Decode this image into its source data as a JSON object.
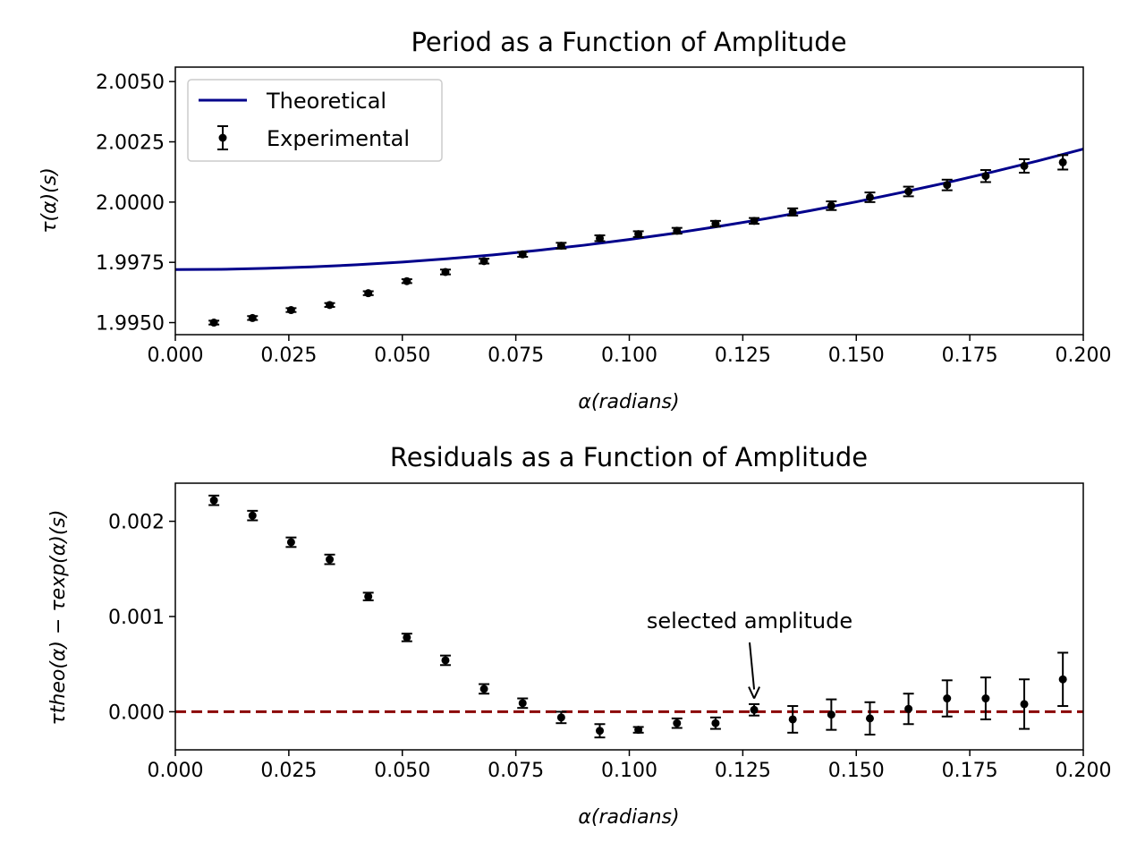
{
  "chart_data": [
    {
      "type": "line",
      "title": "Period as a Function of Amplitude",
      "xlabel": "α(radians)",
      "ylabel": "τ(α)(s)",
      "xlim": [
        0.0,
        0.2
      ],
      "ylim": [
        1.9945,
        2.0056
      ],
      "xticks": [
        "0.000",
        "0.025",
        "0.050",
        "0.075",
        "0.100",
        "0.125",
        "0.150",
        "0.175",
        "0.200"
      ],
      "yticks": [
        "1.9950",
        "1.9975",
        "2.0000",
        "2.0025",
        "2.0050"
      ],
      "grid": false,
      "legend_position": "top-left",
      "series": [
        {
          "name": "Theoretical",
          "kind": "line",
          "color": "#00008b",
          "x": [
            0.0,
            0.01,
            0.02,
            0.03,
            0.04,
            0.05,
            0.06,
            0.07,
            0.08,
            0.09,
            0.1,
            0.11,
            0.12,
            0.13,
            0.14,
            0.15,
            0.16,
            0.17,
            0.18,
            0.19,
            0.2
          ],
          "y": [
            1.9972,
            1.99721,
            1.99725,
            1.99731,
            1.9974,
            1.99751,
            1.99765,
            1.99781,
            1.998,
            1.99821,
            1.99845,
            1.99871,
            1.999,
            1.99931,
            1.99965,
            2.00001,
            2.0004,
            2.00081,
            2.00125,
            2.00171,
            2.0022
          ]
        },
        {
          "name": "Experimental",
          "kind": "errorbar",
          "color": "#000000",
          "x": [
            0.0085,
            0.017,
            0.0255,
            0.034,
            0.0425,
            0.051,
            0.0595,
            0.068,
            0.0765,
            0.085,
            0.0935,
            0.102,
            0.1105,
            0.119,
            0.1275,
            0.136,
            0.1445,
            0.153,
            0.1615,
            0.17,
            0.1785,
            0.187,
            0.1955
          ],
          "y": [
            1.995,
            1.99519,
            1.99552,
            1.99573,
            1.99622,
            1.99672,
            1.9971,
            1.99755,
            1.99783,
            1.99819,
            1.9985,
            1.99867,
            1.99881,
            1.9991,
            1.99922,
            1.99959,
            1.99985,
            2.0002,
            2.00044,
            2.00071,
            2.00108,
            2.0015,
            2.00165
          ],
          "yerr": [
            8e-05,
            8e-05,
            8e-05,
            8e-05,
            8e-05,
            8e-05,
            0.0001,
            0.0001,
            0.0001,
            0.00012,
            0.00012,
            0.00012,
            0.00012,
            0.00012,
            0.00012,
            0.00015,
            0.00018,
            0.0002,
            0.0002,
            0.00022,
            0.00025,
            0.00028,
            0.0003
          ]
        }
      ]
    },
    {
      "type": "scatter",
      "title": "Residuals as a Function of Amplitude",
      "xlabel": "α(radians)",
      "ylabel": "τtheo(α) − τexp(α)(s)",
      "xlim": [
        0.0,
        0.2
      ],
      "ylim": [
        -0.0004,
        0.0024
      ],
      "xticks": [
        "0.000",
        "0.025",
        "0.050",
        "0.075",
        "0.100",
        "0.125",
        "0.150",
        "0.175",
        "0.200"
      ],
      "yticks": [
        "0.000",
        "0.001",
        "0.002"
      ],
      "grid": false,
      "reference_line": {
        "y": 0.0,
        "style": "dashed",
        "color": "#8b0000"
      },
      "annotation": {
        "text": "selected amplitude",
        "x": 0.1275,
        "y": 0.00014
      },
      "series": [
        {
          "kind": "errorbar",
          "color": "#000000",
          "x": [
            0.0085,
            0.017,
            0.0255,
            0.034,
            0.0425,
            0.051,
            0.0595,
            0.068,
            0.0765,
            0.085,
            0.0935,
            0.102,
            0.1105,
            0.119,
            0.1275,
            0.136,
            0.1445,
            0.153,
            0.1615,
            0.17,
            0.1785,
            0.187,
            0.1955
          ],
          "y": [
            0.00222,
            0.00206,
            0.00178,
            0.0016,
            0.00121,
            0.00078,
            0.00054,
            0.00024,
            9e-05,
            -6e-05,
            -0.0002,
            -0.00019,
            -0.00012,
            -0.00012,
            2e-05,
            -8e-05,
            -3e-05,
            -7e-05,
            3e-05,
            0.00014,
            0.00014,
            8e-05,
            0.00034
          ],
          "yerr": [
            5e-05,
            5e-05,
            5e-05,
            5e-05,
            4e-05,
            4e-05,
            5e-05,
            5e-05,
            5e-05,
            6e-05,
            7e-05,
            3e-05,
            5e-05,
            6e-05,
            6e-05,
            0.00014,
            0.00016,
            0.00017,
            0.00016,
            0.00019,
            0.00022,
            0.00026,
            0.00028
          ]
        }
      ]
    }
  ]
}
